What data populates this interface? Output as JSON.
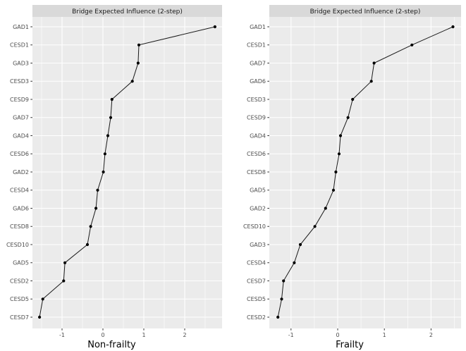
{
  "figure": {
    "background": "#ffffff",
    "description": "Two side-by-side bridge expected influence centrality plots"
  },
  "theme": {
    "panel_bg": "#ebebeb",
    "strip_bg": "#d9d9d9",
    "grid_color": "#ffffff",
    "point_color": "#000000",
    "line_color": "#1a1a1a",
    "tick_color": "#333333",
    "axis_text_color": "#4d4d4d",
    "strip_text_color": "#1a1a1a",
    "axis_title_color": "#000000"
  },
  "chart_data": [
    {
      "type": "line",
      "title": "Bridge Expected Influence (2-step)",
      "xlabel": "Non-frailty",
      "ylabel": "",
      "legend": false,
      "grid": true,
      "categories": [
        "GAD1",
        "CESD1",
        "GAD3",
        "CESD3",
        "CESD9",
        "GAD7",
        "GAD4",
        "CESD6",
        "GAD2",
        "CESD4",
        "GAD6",
        "CESD8",
        "CESD10",
        "GAD5",
        "CESD2",
        "CESD5",
        "CESD7"
      ],
      "values": [
        2.74,
        0.88,
        0.86,
        0.72,
        0.22,
        0.19,
        0.12,
        0.05,
        0.01,
        -0.13,
        -0.17,
        -0.3,
        -0.38,
        -0.93,
        -0.96,
        -1.47,
        -1.55
      ],
      "x_ticks": [
        -1,
        0,
        1,
        2
      ],
      "x_tick_labels": [
        "-1",
        "0",
        "1",
        "2"
      ],
      "x_minor_ticks": [
        -1.5,
        -0.5,
        0.5,
        1.5,
        2.5
      ],
      "xlim": [
        -1.724,
        2.914
      ]
    },
    {
      "type": "line",
      "title": "Bridge Expected Influence (2-step)",
      "xlabel": "Frailty",
      "ylabel": "",
      "legend": false,
      "grid": true,
      "categories": [
        "GAD1",
        "CESD1",
        "GAD7",
        "GAD6",
        "CESD3",
        "CESD9",
        "GAD4",
        "CESD6",
        "CESD8",
        "GAD5",
        "GAD2",
        "CESD10",
        "GAD3",
        "CESD4",
        "CESD7",
        "CESD5",
        "CESD2"
      ],
      "values": [
        2.47,
        1.59,
        0.78,
        0.72,
        0.32,
        0.22,
        0.06,
        0.03,
        -0.04,
        -0.09,
        -0.26,
        -0.49,
        -0.8,
        -0.93,
        -1.16,
        -1.2,
        -1.28
      ],
      "x_ticks": [
        -1,
        0,
        1,
        2
      ],
      "x_tick_labels": [
        "-1",
        "0",
        "1",
        "2"
      ],
      "x_minor_ticks": [
        -1.5,
        -0.5,
        0.5,
        1.5,
        2.5
      ],
      "xlim": [
        -1.465,
        2.643
      ]
    }
  ]
}
